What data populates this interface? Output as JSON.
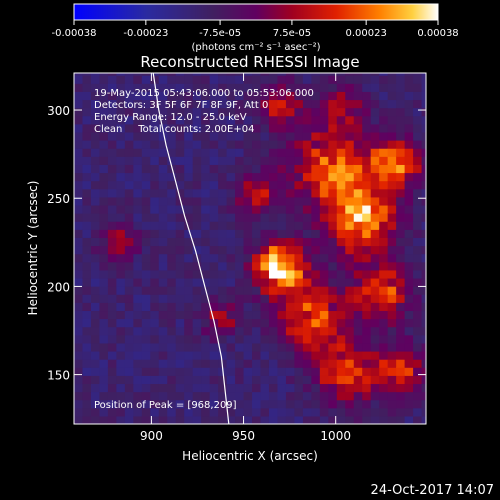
{
  "chart_data": {
    "type": "heatmap",
    "title": "Reconstructed RHESSI Image",
    "xlabel": "Heliocentric X (arcsec)",
    "ylabel": "Heliocentric Y (arcsec)",
    "xlim": [
      858,
      1049
    ],
    "ylim": [
      122,
      321
    ],
    "x_ticks": [
      900,
      950,
      1000
    ],
    "y_ticks": [
      150,
      200,
      250,
      300
    ],
    "colorbar": {
      "ticks": [
        "-0.00038",
        "-0.00023",
        "-7.5e-05",
        "7.5e-05",
        "0.00023",
        "0.00038"
      ],
      "tick_values": [
        -0.00038,
        -0.00023,
        -7.5e-05,
        7.5e-05,
        0.00023,
        0.00038
      ],
      "range": [
        -0.00038,
        0.00038
      ],
      "units": "(photons cm⁻² s⁻¹ asec⁻²)"
    },
    "annotations": [
      "19-May-2015 05:43:06.000 to 05:53:06.000",
      "Detectors: 3F 5F 6F 7F 8F 9F, Att 0",
      "Energy Range: 12.0 - 25.0 keV",
      "Clean     Total counts: 2.00E+04"
    ],
    "peak_label": "Position of Peak = [968,209]",
    "peak": [
      968,
      209
    ],
    "limb_arc": {
      "x": [
        901,
        904,
        908,
        913,
        918,
        924,
        929,
        934,
        938,
        942
      ],
      "y": [
        321,
        300,
        280,
        260,
        240,
        220,
        200,
        180,
        160,
        122
      ]
    },
    "bright_regions": [
      {
        "x": 968,
        "y": 209,
        "value": 0.00038,
        "extent": 14
      },
      {
        "x": 1012,
        "y": 235,
        "value": 0.0003,
        "extent": 18
      },
      {
        "x": 995,
        "y": 265,
        "value": 0.00022,
        "extent": 22
      },
      {
        "x": 1030,
        "y": 268,
        "value": 0.00024,
        "extent": 14
      },
      {
        "x": 985,
        "y": 180,
        "value": 0.0002,
        "extent": 18
      },
      {
        "x": 1005,
        "y": 150,
        "value": 0.00018,
        "extent": 18
      },
      {
        "x": 1022,
        "y": 195,
        "value": 0.00018,
        "extent": 16
      },
      {
        "x": 1035,
        "y": 150,
        "value": 0.00014,
        "extent": 14
      },
      {
        "x": 968,
        "y": 300,
        "value": 0.00012,
        "extent": 12
      },
      {
        "x": 1000,
        "y": 300,
        "value": 0.0001,
        "extent": 12
      },
      {
        "x": 880,
        "y": 222,
        "value": 9e-05,
        "extent": 10
      },
      {
        "x": 935,
        "y": 180,
        "value": 8e-05,
        "extent": 10
      },
      {
        "x": 955,
        "y": 250,
        "value": 0.0001,
        "extent": 12
      }
    ]
  },
  "timestamp": "24-Oct-2017 14:07"
}
